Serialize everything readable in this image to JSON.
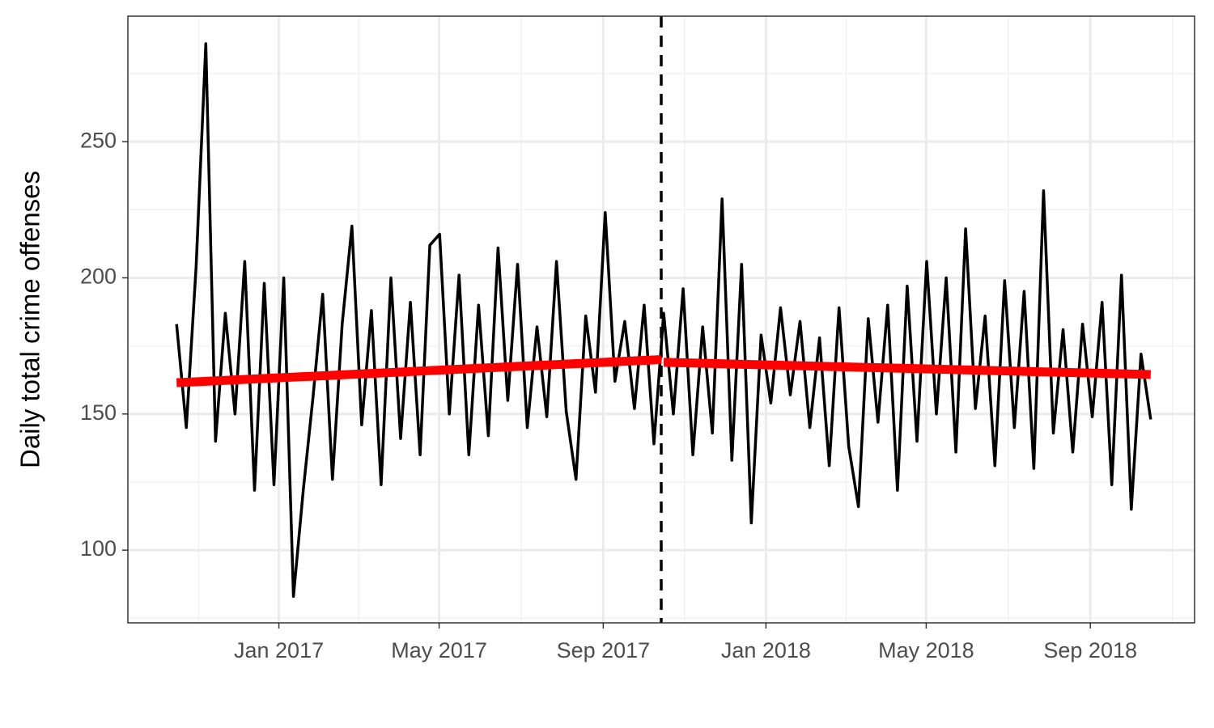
{
  "chart_data": {
    "type": "line",
    "ylabel": "Daily total crime offenses",
    "x": [
      2016.79,
      2016.81,
      2016.83,
      2016.85,
      2016.87,
      2016.89,
      2016.91,
      2016.93,
      2016.95,
      2016.97,
      2016.99,
      2017.01,
      2017.03,
      2017.05,
      2017.07,
      2017.09,
      2017.11,
      2017.13,
      2017.15,
      2017.17,
      2017.19,
      2017.21,
      2017.23,
      2017.25,
      2017.27,
      2017.29,
      2017.31,
      2017.33,
      2017.35,
      2017.37,
      2017.39,
      2017.41,
      2017.43,
      2017.45,
      2017.47,
      2017.49,
      2017.51,
      2017.53,
      2017.55,
      2017.57,
      2017.59,
      2017.61,
      2017.63,
      2017.65,
      2017.67,
      2017.69,
      2017.71,
      2017.73,
      2017.75,
      2017.77,
      2017.79,
      2017.81,
      2017.83,
      2017.85,
      2017.87,
      2017.89,
      2017.91,
      2017.93,
      2017.95,
      2017.97,
      2017.99,
      2018.01,
      2018.03,
      2018.05,
      2018.07,
      2018.09,
      2018.11,
      2018.13,
      2018.15,
      2018.17,
      2018.19,
      2018.21,
      2018.23,
      2018.25,
      2018.27,
      2018.29,
      2018.31,
      2018.33,
      2018.35,
      2018.37,
      2018.39,
      2018.41,
      2018.43,
      2018.45,
      2018.47,
      2018.49,
      2018.51,
      2018.53,
      2018.55,
      2018.57,
      2018.59,
      2018.61,
      2018.63,
      2018.65,
      2018.67,
      2018.69,
      2018.71,
      2018.73,
      2018.75,
      2018.77,
      2018.79
    ],
    "values": [
      183,
      145,
      204,
      286,
      140,
      187,
      150,
      206,
      122,
      198,
      124,
      200,
      83,
      122,
      156,
      194,
      126,
      183,
      219,
      146,
      188,
      124,
      200,
      141,
      191,
      135,
      212,
      216,
      150,
      201,
      135,
      190,
      142,
      211,
      155,
      205,
      145,
      182,
      149,
      206,
      151,
      126,
      186,
      158,
      224,
      162,
      184,
      152,
      190,
      139,
      187,
      150,
      196,
      135,
      182,
      143,
      229,
      133,
      205,
      110,
      179,
      154,
      189,
      157,
      184,
      145,
      178,
      131,
      189,
      138,
      116,
      185,
      147,
      190,
      122,
      197,
      140,
      206,
      150,
      200,
      136,
      218,
      152,
      186,
      131,
      199,
      145,
      195,
      130,
      232,
      143,
      181,
      136,
      183,
      149,
      191,
      124,
      201,
      115,
      172,
      148
    ],
    "color": "#000000",
    "trend_segments": [
      {
        "x": [
          2016.79,
          2017.785
        ],
        "values": [
          161.5,
          170
        ]
      },
      {
        "x": [
          2017.79,
          2018.79
        ],
        "values": [
          169,
          164.5
        ]
      }
    ],
    "trend_color": "#ff0000",
    "vline": 2017.785,
    "xlim": [
      2016.69,
      2018.88
    ],
    "ylim": [
      73.3,
      296.1
    ],
    "xticks": [
      {
        "value": 2017,
        "label": "Jan 2017"
      },
      {
        "value": 2017.329,
        "label": "May 2017"
      },
      {
        "value": 2017.666,
        "label": "Sep 2017"
      },
      {
        "value": 2018,
        "label": "Jan 2018"
      },
      {
        "value": 2018.329,
        "label": "May 2018"
      },
      {
        "value": 2018.666,
        "label": "Sep 2018"
      }
    ],
    "yticks": [
      100,
      150,
      200,
      250
    ],
    "grid": true
  }
}
